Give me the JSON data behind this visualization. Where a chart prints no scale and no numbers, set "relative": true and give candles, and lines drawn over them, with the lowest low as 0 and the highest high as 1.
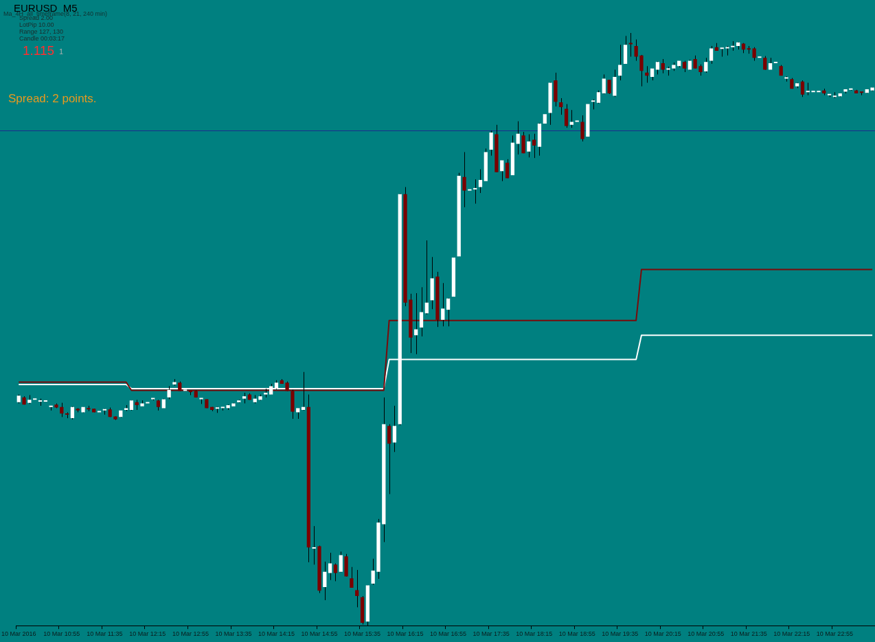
{
  "chart_data": {
    "type": "candlestick",
    "title": "EURUSD  M5",
    "subtitle": "Ma_4H_all_timeframe(8, 21, 240 min)",
    "annotations": [
      "Spread 2.00",
      "LotPip 10.00",
      "Range 127, 130",
      "Candle 00:03:17",
      "1.115",
      "1",
      "Spread: 2 points."
    ],
    "relative": true,
    "categories": [
      "10 Mar 2016",
      null,
      null,
      null,
      null,
      null,
      null,
      null,
      "10 Mar 10:55",
      null,
      null,
      null,
      null,
      null,
      null,
      null,
      "10 Mar 11:35",
      null,
      null,
      null,
      null,
      null,
      null,
      null,
      "10 Mar 12:15",
      null,
      null,
      null,
      null,
      null,
      null,
      null,
      "10 Mar 12:55",
      null,
      null,
      null,
      null,
      null,
      null,
      null,
      "10 Mar 13:35",
      null,
      null,
      null,
      null,
      null,
      null,
      null,
      "10 Mar 14:15",
      null,
      null,
      null,
      null,
      null,
      null,
      null,
      "10 Mar 14:55",
      null,
      null,
      null,
      null,
      null,
      null,
      null,
      "10 Mar 15:35",
      null,
      null,
      null,
      null,
      null,
      null,
      null,
      "10 Mar 16:15",
      null,
      null,
      null,
      null,
      null,
      null,
      null,
      "10 Mar 16:55",
      null,
      null,
      null,
      null,
      null,
      null,
      null,
      "10 Mar 17:35",
      null,
      null,
      null,
      null,
      null,
      null,
      null,
      "10 Mar 18:15",
      null,
      null,
      null,
      null,
      null,
      null,
      null,
      "10 Mar 18:55",
      null,
      null,
      null,
      null,
      null,
      null,
      null,
      "10 Mar 19:35",
      null,
      null,
      null,
      null,
      null,
      null,
      null,
      "10 Mar 20:15",
      null,
      null,
      null,
      null,
      null,
      null,
      null,
      "10 Mar 20:55",
      null,
      null,
      null,
      null,
      null,
      null,
      null,
      "10 Mar 21:35",
      null,
      null,
      null,
      null,
      null,
      null,
      null,
      "10 Mar 22:15",
      null,
      null,
      null,
      null,
      null,
      null,
      null,
      "10 Mar 22:55",
      null,
      null,
      null,
      null,
      null,
      null,
      null
    ],
    "ohlc": [
      [
        0.377,
        0.39,
        0.375,
        0.388
      ],
      [
        0.385,
        0.387,
        0.373,
        0.373
      ],
      [
        0.376,
        0.389,
        0.374,
        0.381
      ],
      [
        0.381,
        0.382,
        0.381,
        0.382
      ],
      [
        0.378,
        0.383,
        0.371,
        0.379
      ],
      [
        0.378,
        0.379,
        0.378,
        0.379
      ],
      [
        0.369,
        0.37,
        0.363,
        0.37
      ],
      [
        0.373,
        0.375,
        0.367,
        0.368
      ],
      [
        0.369,
        0.376,
        0.352,
        0.358
      ],
      [
        0.358,
        0.36,
        0.35,
        0.356
      ],
      [
        0.35,
        0.37,
        0.348,
        0.369
      ],
      [
        0.366,
        0.367,
        0.36,
        0.363
      ],
      [
        0.36,
        0.369,
        0.359,
        0.369
      ],
      [
        0.367,
        0.371,
        0.362,
        0.365
      ],
      [
        0.366,
        0.366,
        0.36,
        0.36
      ],
      [
        0.36,
        0.361,
        0.36,
        0.361
      ],
      [
        0.363,
        0.366,
        0.356,
        0.364
      ],
      [
        0.365,
        0.368,
        0.352,
        0.352
      ],
      [
        0.353,
        0.353,
        0.347,
        0.348
      ],
      [
        0.352,
        0.363,
        0.351,
        0.363
      ],
      [
        0.364,
        0.372,
        0.362,
        0.367
      ],
      [
        0.364,
        0.38,
        0.363,
        0.38
      ],
      [
        0.377,
        0.381,
        0.364,
        0.372
      ],
      [
        0.37,
        0.38,
        0.37,
        0.375
      ],
      [
        0.375,
        0.376,
        0.375,
        0.376
      ],
      [
        0.382,
        0.384,
        0.38,
        0.383
      ],
      [
        0.38,
        0.381,
        0.363,
        0.369
      ],
      [
        0.367,
        0.383,
        0.367,
        0.382
      ],
      [
        0.385,
        0.404,
        0.382,
        0.398
      ],
      [
        0.407,
        0.416,
        0.405,
        0.411
      ],
      [
        0.41,
        0.412,
        0.396,
        0.396
      ],
      [
        0.396,
        0.397,
        0.396,
        0.397
      ],
      [
        0.395,
        0.396,
        0.389,
        0.394
      ],
      [
        0.396,
        0.397,
        0.385,
        0.385
      ],
      [
        0.382,
        0.383,
        0.374,
        0.383
      ],
      [
        0.382,
        0.382,
        0.367,
        0.367
      ],
      [
        0.369,
        0.369,
        0.362,
        0.364
      ],
      [
        0.366,
        0.369,
        0.359,
        0.367
      ],
      [
        0.367,
        0.369,
        0.363,
        0.369
      ],
      [
        0.367,
        0.373,
        0.364,
        0.372
      ],
      [
        0.37,
        0.376,
        0.37,
        0.375
      ],
      [
        0.377,
        0.381,
        0.376,
        0.38
      ],
      [
        0.383,
        0.393,
        0.375,
        0.387
      ],
      [
        0.39,
        0.392,
        0.381,
        0.381
      ],
      [
        0.377,
        0.389,
        0.375,
        0.383
      ],
      [
        0.381,
        0.39,
        0.38,
        0.387
      ],
      [
        0.39,
        0.4,
        0.385,
        0.393
      ],
      [
        0.39,
        0.408,
        0.39,
        0.404
      ],
      [
        0.4,
        0.414,
        0.399,
        0.41
      ],
      [
        0.414,
        0.416,
        0.408,
        0.408
      ],
      [
        0.41,
        0.412,
        0.396,
        0.396
      ],
      [
        0.396,
        0.398,
        0.349,
        0.361
      ],
      [
        0.36,
        0.367,
        0.349,
        0.367
      ],
      [
        0.364,
        0.428,
        0.363,
        0.369
      ],
      [
        0.369,
        0.39,
        0.107,
        0.132
      ],
      [
        0.13,
        0.168,
        0.103,
        0.131
      ],
      [
        0.134,
        0.135,
        0.055,
        0.059
      ],
      [
        0.065,
        0.108,
        0.043,
        0.091
      ],
      [
        0.089,
        0.123,
        0.077,
        0.105
      ],
      [
        0.103,
        0.105,
        0.075,
        0.089
      ],
      [
        0.091,
        0.125,
        0.09,
        0.119
      ],
      [
        0.117,
        0.121,
        0.083,
        0.083
      ],
      [
        0.08,
        0.099,
        0.064,
        0.064
      ],
      [
        0.06,
        0.094,
        0.031,
        0.05
      ],
      [
        0.048,
        0.05,
        0.002,
        0.005
      ],
      [
        0.007,
        0.068,
        0,
        0.068
      ],
      [
        0.071,
        0.113,
        0.069,
        0.093
      ],
      [
        0.091,
        0.18,
        0.079,
        0.174
      ],
      [
        0.171,
        0.385,
        0.141,
        0.34
      ],
      [
        0.337,
        0.34,
        0.222,
        0.307
      ],
      [
        0.309,
        0.371,
        0.293,
        0.337
      ],
      [
        0.34,
        0.729,
        0.338,
        0.728
      ],
      [
        0.728,
        0.74,
        0.539,
        0.545
      ],
      [
        0.55,
        0.56,
        0.46,
        0.486
      ],
      [
        0.49,
        0.561,
        0.458,
        0.5
      ],
      [
        0.503,
        0.571,
        0.488,
        0.529
      ],
      [
        0.527,
        0.65,
        0.525,
        0.545
      ],
      [
        0.549,
        0.622,
        0.534,
        0.586
      ],
      [
        0.589,
        0.597,
        0.504,
        0.516
      ],
      [
        0.516,
        0.578,
        0.505,
        0.535
      ],
      [
        0.533,
        0.553,
        0.505,
        0.552
      ],
      [
        0.555,
        0.621,
        0.555,
        0.621
      ],
      [
        0.623,
        0.764,
        0.623,
        0.759
      ],
      [
        0.757,
        0.799,
        0.706,
        0.734
      ],
      [
        0.734,
        0.735,
        0.734,
        0.735
      ],
      [
        0.736,
        0.753,
        0.712,
        0.737
      ],
      [
        0.74,
        0.77,
        0.73,
        0.752
      ],
      [
        0.75,
        0.805,
        0.75,
        0.799
      ],
      [
        0.803,
        0.835,
        0.793,
        0.832
      ],
      [
        0.829,
        0.845,
        0.765,
        0.765
      ],
      [
        0.767,
        0.785,
        0.75,
        0.785
      ],
      [
        0.781,
        0.787,
        0.755,
        0.755
      ],
      [
        0.76,
        0.827,
        0.76,
        0.815
      ],
      [
        0.813,
        0.851,
        0.795,
        0.83
      ],
      [
        0.827,
        0.833,
        0.797,
        0.797
      ],
      [
        0.8,
        0.829,
        0.79,
        0.817
      ],
      [
        0.82,
        0.83,
        0.789,
        0.81
      ],
      [
        0.808,
        0.848,
        0.793,
        0.847
      ],
      [
        0.847,
        0.863,
        0.847,
        0.863
      ],
      [
        0.865,
        0.917,
        0.845,
        0.916
      ],
      [
        0.92,
        0.933,
        0.876,
        0.884
      ],
      [
        0.883,
        0.89,
        0.862,
        0.875
      ],
      [
        0.872,
        0.88,
        0.84,
        0.843
      ],
      [
        0.845,
        0.87,
        0.84,
        0.85
      ],
      [
        0.85,
        0.851,
        0.85,
        0.851
      ],
      [
        0.85,
        0.861,
        0.817,
        0.821
      ],
      [
        0.825,
        0.88,
        0.825,
        0.88
      ],
      [
        0.884,
        0.888,
        0.871,
        0.886
      ],
      [
        0.882,
        0.903,
        0.881,
        0.9
      ],
      [
        0.898,
        0.93,
        0.897,
        0.923
      ],
      [
        0.921,
        0.921,
        0.897,
        0.898
      ],
      [
        0.894,
        0.938,
        0.892,
        0.926
      ],
      [
        0.928,
        0.98,
        0.92,
        0.946
      ],
      [
        0.948,
        0.995,
        0.948,
        0.98
      ],
      [
        0.982,
        1,
        0.96,
        0.981
      ],
      [
        0.978,
        0.989,
        0.953,
        0.96
      ],
      [
        0.962,
        0.963,
        0.91,
        0.936
      ],
      [
        0.933,
        0.944,
        0.916,
        0.928
      ],
      [
        0.926,
        0.94,
        0.92,
        0.94
      ],
      [
        0.938,
        0.952,
        0.93,
        0.951
      ],
      [
        0.949,
        0.956,
        0.932,
        0.938
      ],
      [
        0.938,
        0.943,
        0.928,
        0.939
      ],
      [
        0.94,
        0.95,
        0.936,
        0.946
      ],
      [
        0.944,
        0.953,
        0.942,
        0.953
      ],
      [
        0.951,
        0.953,
        0.934,
        0.94
      ],
      [
        0.938,
        0.955,
        0.937,
        0.953
      ],
      [
        0.956,
        0.962,
        0.94,
        0.94
      ],
      [
        0.944,
        0.947,
        0.928,
        0.934
      ],
      [
        0.935,
        0.958,
        0.933,
        0.951
      ],
      [
        0.953,
        0.978,
        0.948,
        0.974
      ],
      [
        0.976,
        0.983,
        0.97,
        0.97
      ],
      [
        0.973,
        0.975,
        0.96,
        0.974
      ],
      [
        0.974,
        0.978,
        0.962,
        0.976
      ],
      [
        0.976,
        0.986,
        0.97,
        0.977
      ],
      [
        0.978,
        0.985,
        0.972,
        0.984
      ],
      [
        0.982,
        0.983,
        0.966,
        0.972
      ],
      [
        0.973,
        0.978,
        0.965,
        0.972
      ],
      [
        0.974,
        0.976,
        0.953,
        0.958
      ],
      [
        0.958,
        0.959,
        0.958,
        0.959
      ],
      [
        0.958,
        0.961,
        0.938,
        0.938
      ],
      [
        0.938,
        0.958,
        0.938,
        0.949
      ],
      [
        0.949,
        0.95,
        0.949,
        0.95
      ],
      [
        0.944,
        0.946,
        0.928,
        0.928
      ],
      [
        0.923,
        0.927,
        0.918,
        0.924
      ],
      [
        0.922,
        0.924,
        0.906,
        0.906
      ],
      [
        0.91,
        0.916,
        0.907,
        0.915
      ],
      [
        0.918,
        0.92,
        0.892,
        0.896
      ],
      [
        0.9,
        0.916,
        0.895,
        0.901
      ],
      [
        0.9,
        0.901,
        0.9,
        0.901
      ],
      [
        0.9,
        0.901,
        0.9,
        0.901
      ],
      [
        0.903,
        0.906,
        0.895,
        0.898
      ],
      [
        0.895,
        0.897,
        0.892,
        0.896
      ],
      [
        0.892,
        0.9,
        0.89,
        0.894
      ],
      [
        0.893,
        0.898,
        0.892,
        0.898
      ],
      [
        0.901,
        0.905,
        0.898,
        0.905
      ],
      [
        0.904,
        0.905,
        0.903,
        0.905
      ],
      [
        0.903,
        0.904,
        0.898,
        0.898
      ],
      [
        0.9,
        0.9,
        0.895,
        0.899
      ],
      [
        0.899,
        0.905,
        0.898,
        0.905
      ],
      [
        0.903,
        0.908,
        0.902,
        0.908
      ]
    ],
    "colors": [
      "#ffffff",
      "#7a0000",
      "#ffffff",
      "#ffffff",
      "#ffffff",
      "#ffffff",
      "#ffffff",
      "#7a0000",
      "#7a0000",
      "#7a0000",
      "#ffffff",
      "#7a0000",
      "#ffffff",
      "#7a0000",
      "#7a0000",
      "#ffffff",
      "#ffffff",
      "#7a0000",
      "#7a0000",
      "#ffffff",
      "#ffffff",
      "#ffffff",
      "#7a0000",
      "#ffffff",
      "#ffffff",
      "#ffffff",
      "#7a0000",
      "#ffffff",
      "#ffffff",
      "#ffffff",
      "#7a0000",
      "#ffffff",
      "#7a0000",
      "#7a0000",
      "#ffffff",
      "#7a0000",
      "#7a0000",
      "#ffffff",
      "#ffffff",
      "#ffffff",
      "#ffffff",
      "#ffffff",
      "#ffffff",
      "#7a0000",
      "#ffffff",
      "#ffffff",
      "#ffffff",
      "#ffffff",
      "#ffffff",
      "#7a0000",
      "#7a0000",
      "#7a0000",
      "#ffffff",
      "#ffffff",
      "#7a0000",
      "#ffffff",
      "#7a0000",
      "#ffffff",
      "#ffffff",
      "#7a0000",
      "#ffffff",
      "#7a0000",
      "#7a0000",
      "#7a0000",
      "#7a0000",
      "#ffffff",
      "#ffffff",
      "#ffffff",
      "#ffffff",
      "#7a0000",
      "#ffffff",
      "#ffffff",
      "#7a0000",
      "#7a0000",
      "#ffffff",
      "#ffffff",
      "#ffffff",
      "#ffffff",
      "#7a0000",
      "#ffffff",
      "#ffffff",
      "#ffffff",
      "#ffffff",
      "#7a0000",
      "#ffffff",
      "#ffffff",
      "#ffffff",
      "#ffffff",
      "#ffffff",
      "#7a0000",
      "#ffffff",
      "#7a0000",
      "#ffffff",
      "#ffffff",
      "#7a0000",
      "#ffffff",
      "#7a0000",
      "#ffffff",
      "#ffffff",
      "#ffffff",
      "#7a0000",
      "#7a0000",
      "#7a0000",
      "#ffffff",
      "#ffffff",
      "#7a0000",
      "#ffffff",
      "#ffffff",
      "#ffffff",
      "#ffffff",
      "#7a0000",
      "#ffffff",
      "#ffffff",
      "#ffffff",
      "#7a0000",
      "#7a0000",
      "#7a0000",
      "#7a0000",
      "#ffffff",
      "#ffffff",
      "#7a0000",
      "#ffffff",
      "#ffffff",
      "#ffffff",
      "#7a0000",
      "#ffffff",
      "#7a0000",
      "#7a0000",
      "#ffffff",
      "#ffffff",
      "#7a0000",
      "#ffffff",
      "#ffffff",
      "#ffffff",
      "#ffffff",
      "#7a0000",
      "#7a0000",
      "#7a0000",
      "#ffffff",
      "#7a0000",
      "#ffffff",
      "#ffffff",
      "#7a0000",
      "#ffffff",
      "#7a0000",
      "#ffffff",
      "#7a0000",
      "#ffffff",
      "#ffffff",
      "#ffffff",
      "#7a0000",
      "#ffffff",
      "#ffffff",
      "#ffffff",
      "#ffffff",
      "#ffffff",
      "#7a0000",
      "#7a0000",
      "#ffffff",
      "#ffffff"
    ],
    "series": [
      {
        "type": "line",
        "color": "#7a0a0a",
        "values": [
          0.411,
          0.411,
          0.411,
          0.411,
          0.411,
          0.411,
          0.411,
          0.411,
          0.411,
          0.411,
          0.411,
          0.411,
          0.411,
          0.411,
          0.411,
          0.411,
          0.411,
          0.411,
          0.411,
          0.411,
          0.411,
          0.397,
          0.397,
          0.397,
          0.397,
          0.397,
          0.397,
          0.397,
          0.397,
          0.397,
          0.397,
          0.397,
          0.397,
          0.397,
          0.397,
          0.397,
          0.397,
          0.397,
          0.397,
          0.397,
          0.397,
          0.397,
          0.397,
          0.397,
          0.397,
          0.397,
          0.397,
          0.397,
          0.397,
          0.397,
          0.397,
          0.397,
          0.397,
          0.397,
          0.397,
          0.397,
          0.397,
          0.397,
          0.397,
          0.397,
          0.397,
          0.397,
          0.397,
          0.397,
          0.397,
          0.397,
          0.397,
          0.397,
          0.397,
          0.515,
          0.515,
          0.515,
          0.515,
          0.515,
          0.515,
          0.515,
          0.515,
          0.515,
          0.515,
          0.515,
          0.515,
          0.515,
          0.515,
          0.515,
          0.515,
          0.515,
          0.515,
          0.515,
          0.515,
          0.515,
          0.515,
          0.515,
          0.515,
          0.515,
          0.515,
          0.515,
          0.515,
          0.515,
          0.515,
          0.515,
          0.515,
          0.515,
          0.515,
          0.515,
          0.515,
          0.515,
          0.515,
          0.515,
          0.515,
          0.515,
          0.515,
          0.515,
          0.515,
          0.515,
          0.515,
          0.515,
          0.601,
          0.601,
          0.601,
          0.601,
          0.601,
          0.601,
          0.601,
          0.601,
          0.601,
          0.601,
          0.601,
          0.601,
          0.601,
          0.601,
          0.601,
          0.601,
          0.601,
          0.601,
          0.601,
          0.601,
          0.601,
          0.601,
          0.601,
          0.601,
          0.601,
          0.601,
          0.601,
          0.601,
          0.601,
          0.601,
          0.601,
          0.601,
          0.601,
          0.601,
          0.601,
          0.601,
          0.601,
          0.601,
          0.601,
          0.601,
          0.601,
          0.601,
          0.601,
          0.601
        ]
      },
      {
        "type": "line",
        "color": "#ffffff",
        "values": [
          0.407,
          0.407,
          0.407,
          0.407,
          0.407,
          0.407,
          0.407,
          0.407,
          0.407,
          0.407,
          0.407,
          0.407,
          0.407,
          0.407,
          0.407,
          0.407,
          0.407,
          0.407,
          0.407,
          0.407,
          0.407,
          0.4,
          0.4,
          0.4,
          0.4,
          0.4,
          0.4,
          0.4,
          0.4,
          0.4,
          0.4,
          0.4,
          0.4,
          0.4,
          0.4,
          0.4,
          0.4,
          0.4,
          0.4,
          0.4,
          0.4,
          0.4,
          0.4,
          0.4,
          0.4,
          0.4,
          0.4,
          0.4,
          0.4,
          0.4,
          0.4,
          0.4,
          0.4,
          0.4,
          0.4,
          0.4,
          0.4,
          0.4,
          0.4,
          0.4,
          0.4,
          0.4,
          0.4,
          0.4,
          0.4,
          0.4,
          0.4,
          0.4,
          0.4,
          0.449,
          0.449,
          0.449,
          0.449,
          0.449,
          0.449,
          0.449,
          0.449,
          0.449,
          0.449,
          0.449,
          0.449,
          0.449,
          0.449,
          0.449,
          0.449,
          0.449,
          0.449,
          0.449,
          0.449,
          0.449,
          0.449,
          0.449,
          0.449,
          0.449,
          0.449,
          0.449,
          0.449,
          0.449,
          0.449,
          0.449,
          0.449,
          0.449,
          0.449,
          0.449,
          0.449,
          0.449,
          0.449,
          0.449,
          0.449,
          0.449,
          0.449,
          0.449,
          0.449,
          0.449,
          0.449,
          0.449,
          0.49,
          0.49,
          0.49,
          0.49,
          0.49,
          0.49,
          0.49,
          0.49,
          0.49,
          0.49,
          0.49,
          0.49,
          0.49,
          0.49,
          0.49,
          0.49,
          0.49,
          0.49,
          0.49,
          0.49,
          0.49,
          0.49,
          0.49,
          0.49,
          0.49,
          0.49,
          0.49,
          0.49,
          0.49,
          0.49,
          0.49,
          0.49,
          0.49,
          0.49,
          0.49,
          0.49,
          0.49,
          0.49,
          0.49,
          0.49,
          0.49,
          0.49,
          0.49,
          0.49
        ]
      }
    ],
    "ref_lines": [
      {
        "axis": "y",
        "value": 0.835,
        "color": "#1c2a8c"
      }
    ]
  }
}
